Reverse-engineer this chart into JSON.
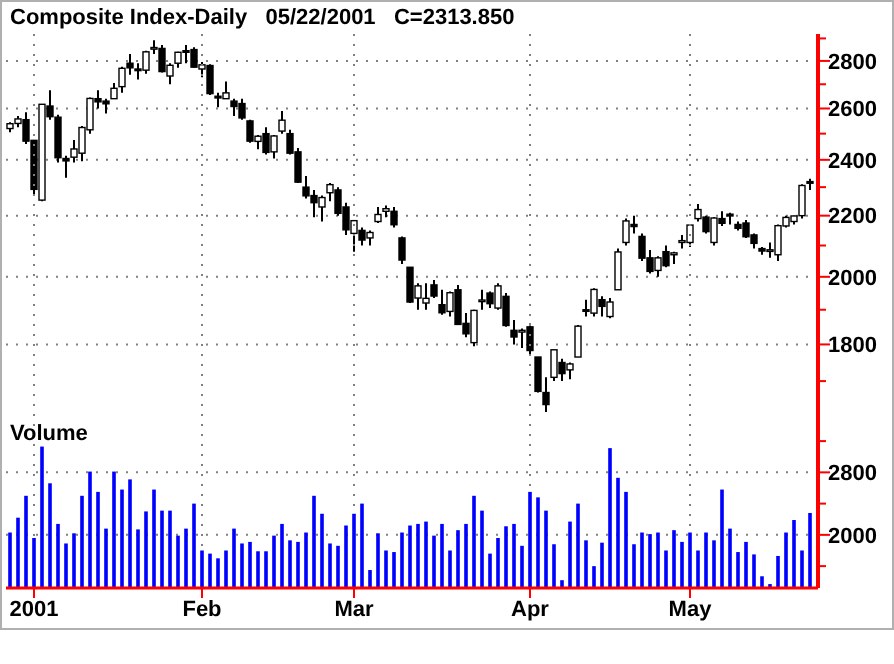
{
  "chart_data": [
    {
      "type": "candlestick",
      "title": "Composite Index-Daily   05/22/2001   C=2313.850",
      "log": true,
      "grid": true,
      "tick_labels": "y",
      "color": "#000000",
      "categories": [
        null,
        null,
        null,
        null,
        null,
        null,
        null,
        null,
        null,
        null,
        null,
        null,
        null,
        null,
        null,
        null,
        null,
        null,
        null,
        null,
        null,
        null,
        null,
        null,
        null,
        null,
        null,
        null,
        null,
        null,
        null,
        null,
        null,
        null,
        null,
        null,
        null,
        null,
        null,
        null,
        null,
        null,
        null,
        null,
        null,
        null,
        null,
        null,
        null,
        null,
        null,
        null,
        null,
        null,
        null,
        null,
        null,
        null,
        null,
        null,
        null,
        null,
        null,
        null,
        null,
        null,
        null,
        null,
        null,
        null,
        null,
        null,
        null,
        null,
        null,
        null,
        null,
        null,
        null,
        null,
        null,
        null,
        null,
        null,
        null,
        null,
        null,
        null,
        null,
        null,
        null,
        null,
        null,
        null,
        null,
        null,
        null,
        null,
        null,
        null,
        null
      ],
      "ylim": [
        1600,
        2920
      ],
      "yticks": [
        {
          "value": 1700,
          "label": null
        },
        1800,
        {
          "value": 1900,
          "label": null
        },
        2000,
        {
          "value": 2100,
          "label": null
        },
        2200,
        {
          "value": 2300,
          "label": null
        },
        2400,
        {
          "value": 2500,
          "label": null
        },
        2600,
        {
          "value": 2700,
          "label": null
        },
        2800,
        {
          "value": 2900,
          "label": null
        }
      ],
      "ohlc": [
        [
          2520,
          2545,
          2505,
          2539
        ],
        [
          2540,
          2570,
          2525,
          2558
        ],
        [
          2555,
          2585,
          2460,
          2471
        ],
        [
          2474,
          2474,
          2273,
          2292
        ],
        [
          2254,
          2618,
          2250,
          2617
        ],
        [
          2610,
          2675,
          2555,
          2567
        ],
        [
          2565,
          2575,
          2390,
          2408
        ],
        [
          2405,
          2415,
          2334,
          2396
        ],
        [
          2410,
          2475,
          2390,
          2441
        ],
        [
          2425,
          2530,
          2395,
          2524
        ],
        [
          2515,
          2645,
          2500,
          2641
        ],
        [
          2640,
          2675,
          2600,
          2627
        ],
        [
          2630,
          2640,
          2580,
          2619
        ],
        [
          2640,
          2705,
          2640,
          2683
        ],
        [
          2690,
          2775,
          2665,
          2768
        ],
        [
          2790,
          2830,
          2740,
          2770
        ],
        [
          2765,
          2790,
          2720,
          2758
        ],
        [
          2760,
          2845,
          2745,
          2840
        ],
        [
          2855,
          2892,
          2830,
          2859
        ],
        [
          2855,
          2870,
          2750,
          2754
        ],
        [
          2735,
          2790,
          2700,
          2781
        ],
        [
          2790,
          2840,
          2770,
          2838
        ],
        [
          2845,
          2870,
          2790,
          2838
        ],
        [
          2850,
          2860,
          2770,
          2773
        ],
        [
          2765,
          2795,
          2730,
          2783
        ],
        [
          2780,
          2785,
          2655,
          2661
        ],
        [
          2650,
          2665,
          2605,
          2643
        ],
        [
          2640,
          2712,
          2640,
          2664
        ],
        [
          2630,
          2640,
          2570,
          2608
        ],
        [
          2620,
          2640,
          2555,
          2562
        ],
        [
          2550,
          2555,
          2465,
          2471
        ],
        [
          2470,
          2495,
          2440,
          2490
        ],
        [
          2500,
          2525,
          2420,
          2428
        ],
        [
          2430,
          2495,
          2405,
          2491
        ],
        [
          2510,
          2590,
          2500,
          2553
        ],
        [
          2500,
          2515,
          2420,
          2425
        ],
        [
          2430,
          2445,
          2315,
          2318
        ],
        [
          2300,
          2340,
          2260,
          2269
        ],
        [
          2270,
          2290,
          2195,
          2245
        ],
        [
          2230,
          2270,
          2180,
          2263
        ],
        [
          2280,
          2315,
          2250,
          2309
        ],
        [
          2290,
          2300,
          2200,
          2208
        ],
        [
          2230,
          2245,
          2135,
          2152
        ],
        [
          2140,
          2185,
          2080,
          2183
        ],
        [
          2150,
          2160,
          2100,
          2118
        ],
        [
          2125,
          2150,
          2100,
          2143
        ],
        [
          2180,
          2230,
          2175,
          2204
        ],
        [
          2215,
          2235,
          2195,
          2224
        ],
        [
          2215,
          2230,
          2160,
          2169
        ],
        [
          2125,
          2130,
          2040,
          2053
        ],
        [
          2030,
          2030,
          1920,
          1923
        ],
        [
          1935,
          1980,
          1900,
          1972
        ],
        [
          1920,
          1980,
          1900,
          1934
        ],
        [
          1975,
          1990,
          1935,
          1941
        ],
        [
          1915,
          1960,
          1885,
          1891
        ],
        [
          1895,
          1955,
          1880,
          1951
        ],
        [
          1960,
          1975,
          1855,
          1857
        ],
        [
          1860,
          1890,
          1820,
          1830
        ],
        [
          1805,
          1900,
          1795,
          1898
        ],
        [
          1925,
          1960,
          1900,
          1929
        ],
        [
          1950,
          1955,
          1905,
          1918
        ],
        [
          1905,
          1980,
          1900,
          1972
        ],
        [
          1940,
          1950,
          1850,
          1854
        ],
        [
          1840,
          1870,
          1800,
          1821
        ],
        [
          1835,
          1845,
          1790,
          1840
        ],
        [
          1850,
          1860,
          1770,
          1783
        ],
        [
          1765,
          1765,
          1670,
          1673
        ],
        [
          1670,
          1710,
          1620,
          1639
        ],
        [
          1710,
          1785,
          1700,
          1785
        ],
        [
          1750,
          1760,
          1700,
          1720
        ],
        [
          1730,
          1750,
          1705,
          1746
        ],
        [
          1765,
          1855,
          1765,
          1852
        ],
        [
          1900,
          1930,
          1880,
          1899
        ],
        [
          1890,
          1965,
          1880,
          1961
        ],
        [
          1930,
          1940,
          1880,
          1910
        ],
        [
          1880,
          1935,
          1875,
          1923
        ],
        [
          1960,
          2090,
          1960,
          2079
        ],
        [
          2110,
          2190,
          2100,
          2182
        ],
        [
          2170,
          2200,
          2140,
          2163
        ],
        [
          2130,
          2140,
          2050,
          2059
        ],
        [
          2060,
          2085,
          2010,
          2017
        ],
        [
          2020,
          2065,
          2000,
          2060
        ],
        [
          2080,
          2100,
          2030,
          2035
        ],
        [
          2070,
          2080,
          2040,
          2076
        ],
        [
          2110,
          2135,
          2090,
          2116
        ],
        [
          2110,
          2170,
          2095,
          2168
        ],
        [
          2190,
          2240,
          2180,
          2221
        ],
        [
          2195,
          2200,
          2140,
          2146
        ],
        [
          2110,
          2195,
          2100,
          2192
        ],
        [
          2190,
          2215,
          2165,
          2174
        ],
        [
          2205,
          2210,
          2170,
          2199
        ],
        [
          2170,
          2180,
          2150,
          2157
        ],
        [
          2175,
          2185,
          2125,
          2129
        ],
        [
          2135,
          2140,
          2090,
          2107
        ],
        [
          2090,
          2095,
          2070,
          2082
        ],
        [
          2085,
          2110,
          2060,
          2086
        ],
        [
          2070,
          2170,
          2050,
          2166
        ],
        [
          2165,
          2200,
          2160,
          2194
        ],
        [
          2180,
          2200,
          2170,
          2199
        ],
        [
          2200,
          2310,
          2190,
          2306
        ],
        [
          2320,
          2330,
          2290,
          2314
        ]
      ]
    },
    {
      "type": "bar",
      "title": "Volume",
      "grid": true,
      "color": "#0000ff",
      "categories": [
        null,
        null,
        null,
        "2001",
        null,
        null,
        null,
        null,
        null,
        null,
        null,
        null,
        null,
        null,
        null,
        null,
        null,
        null,
        null,
        null,
        null,
        null,
        null,
        null,
        "Feb",
        null,
        null,
        null,
        null,
        null,
        null,
        null,
        null,
        null,
        null,
        null,
        null,
        null,
        null,
        null,
        null,
        null,
        null,
        "Mar",
        null,
        null,
        null,
        null,
        null,
        null,
        null,
        null,
        null,
        null,
        null,
        null,
        null,
        null,
        null,
        null,
        null,
        null,
        null,
        null,
        null,
        "Apr",
        null,
        null,
        null,
        null,
        null,
        null,
        null,
        null,
        null,
        null,
        null,
        null,
        null,
        null,
        null,
        null,
        null,
        null,
        null,
        "May",
        null,
        null,
        null,
        null,
        null,
        null,
        null,
        null,
        null,
        null,
        null,
        null,
        null,
        null,
        null
      ],
      "ylim": [
        1320,
        3470
      ],
      "yticks": [
        {
          "value": 1600,
          "label": null
        },
        2000,
        {
          "value": 2400,
          "label": null
        },
        2800,
        {
          "value": 3200,
          "label": null
        }
      ],
      "values": [
        2030,
        2220,
        2500,
        1960,
        3130,
        2660,
        2140,
        1890,
        2020,
        2500,
        2810,
        2550,
        2080,
        2810,
        2580,
        2710,
        2070,
        2300,
        2580,
        2310,
        2310,
        1990,
        2080,
        2400,
        1800,
        1760,
        1700,
        1800,
        2080,
        1890,
        1910,
        1790,
        1790,
        1990,
        2140,
        1930,
        1910,
        2030,
        2500,
        2270,
        1890,
        1860,
        2120,
        2270,
        2400,
        1550,
        2020,
        1800,
        1780,
        2030,
        2120,
        2140,
        2170,
        1990,
        2140,
        1800,
        2060,
        2140,
        2500,
        2310,
        1760,
        1960,
        2110,
        2140,
        1860,
        2550,
        2480,
        2310,
        1880,
        1420,
        2170,
        2400,
        1930,
        1600,
        1900,
        3110,
        2730,
        2550,
        1880,
        2030,
        2010,
        2030,
        1800,
        2060,
        1910,
        2030,
        1800,
        2030,
        1930,
        2580,
        2080,
        1780,
        1910,
        1750,
        1470,
        1370,
        1730,
        2030,
        2190,
        1800,
        2280
      ]
    }
  ]
}
